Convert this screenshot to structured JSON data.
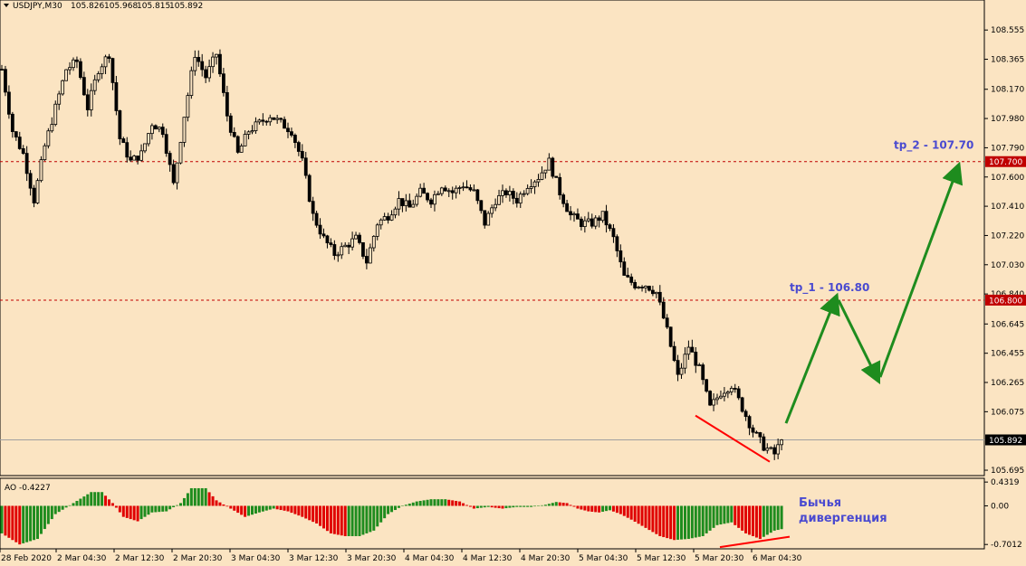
{
  "colors": {
    "background": "#fbe4c2",
    "candle": "#000000",
    "level_line": "#c00000",
    "price_badge": "#c00000",
    "current_line": "#a0a0a0",
    "current_badge": "#000000",
    "annotation_text": "#4a4ad0",
    "arrow": "#1e8c1e",
    "divergence_line": "#ff0000",
    "ao_up": "#1e8c1e",
    "ao_down": "#e00000"
  },
  "chart_data": [
    {
      "type": "candlestick",
      "header": {
        "symbol_label": "USDJPY,M30",
        "ohlc": [
          "105.826",
          "105.968",
          "105.815",
          "105.892"
        ]
      },
      "ylim": [
        105.66,
        108.75
      ],
      "y_ticks": [
        "108.555",
        "108.365",
        "108.170",
        "107.980",
        "107.790",
        "107.600",
        "107.410",
        "107.220",
        "107.030",
        "106.840",
        "106.645",
        "106.455",
        "106.265",
        "106.075",
        "105.695"
      ],
      "x_ticks": [
        "28 Feb 2020",
        "2 Mar 04:30",
        "2 Mar 12:30",
        "2 Mar 20:30",
        "3 Mar 04:30",
        "3 Mar 12:30",
        "3 Mar 20:30",
        "4 Mar 04:30",
        "4 Mar 12:30",
        "4 Mar 20:30",
        "5 Mar 04:30",
        "5 Mar 12:30",
        "5 Mar 20:30",
        "6 Mar 04:30"
      ],
      "grid": false,
      "price_anchors": [
        [
          0,
          108.3
        ],
        [
          3,
          107.9
        ],
        [
          6,
          107.75
        ],
        [
          9,
          107.45
        ],
        [
          12,
          107.8
        ],
        [
          15,
          108.05
        ],
        [
          18,
          108.3
        ],
        [
          21,
          108.35
        ],
        [
          24,
          108.05
        ],
        [
          27,
          108.3
        ],
        [
          30,
          108.4
        ],
        [
          33,
          107.85
        ],
        [
          36,
          107.7
        ],
        [
          39,
          107.75
        ],
        [
          42,
          107.95
        ],
        [
          45,
          107.9
        ],
        [
          48,
          107.55
        ],
        [
          51,
          108.0
        ],
        [
          54,
          108.4
        ],
        [
          57,
          108.25
        ],
        [
          60,
          108.4
        ],
        [
          63,
          108.0
        ],
        [
          66,
          107.75
        ],
        [
          69,
          107.9
        ],
        [
          72,
          107.95
        ],
        [
          75,
          108.0
        ],
        [
          78,
          107.95
        ],
        [
          81,
          107.9
        ],
        [
          84,
          107.7
        ],
        [
          87,
          107.35
        ],
        [
          90,
          107.2
        ],
        [
          93,
          107.1
        ],
        [
          96,
          107.15
        ],
        [
          99,
          107.2
        ],
        [
          102,
          107.05
        ],
        [
          105,
          107.3
        ],
        [
          108,
          107.35
        ],
        [
          111,
          107.45
        ],
        [
          114,
          107.4
        ],
        [
          117,
          107.5
        ],
        [
          120,
          107.45
        ],
        [
          123,
          107.55
        ],
        [
          126,
          107.5
        ],
        [
          129,
          107.55
        ],
        [
          132,
          107.5
        ],
        [
          135,
          107.3
        ],
        [
          138,
          107.45
        ],
        [
          141,
          107.5
        ],
        [
          144,
          107.45
        ],
        [
          147,
          107.55
        ],
        [
          150,
          107.6
        ],
        [
          153,
          107.7
        ],
        [
          156,
          107.5
        ],
        [
          159,
          107.35
        ],
        [
          162,
          107.3
        ],
        [
          165,
          107.3
        ],
        [
          168,
          107.35
        ],
        [
          171,
          107.2
        ],
        [
          174,
          106.95
        ],
        [
          177,
          106.9
        ],
        [
          180,
          106.9
        ],
        [
          183,
          106.85
        ],
        [
          186,
          106.6
        ],
        [
          189,
          106.3
        ],
        [
          192,
          106.5
        ],
        [
          195,
          106.35
        ],
        [
          198,
          106.1
        ],
        [
          201,
          106.2
        ],
        [
          204,
          106.25
        ],
        [
          207,
          106.1
        ],
        [
          210,
          105.95
        ],
        [
          213,
          105.85
        ],
        [
          216,
          105.8
        ],
        [
          218,
          105.89
        ]
      ],
      "levels": [
        {
          "label": "107.700",
          "value": 107.7
        },
        {
          "label": "106.800",
          "value": 106.8
        }
      ],
      "current_price": {
        "label": "105.892",
        "value": 105.892
      },
      "annotations": {
        "tp2": "tp_2 - 107.70",
        "tp1": "tp_1 - 106.80"
      },
      "forecast_path": [
        106.0,
        106.8,
        106.3,
        107.65
      ],
      "divergence_price": [
        106.05,
        105.75
      ]
    },
    {
      "type": "bar",
      "header": {
        "label": "AO -0.4227"
      },
      "ylim": [
        -0.78,
        0.5
      ],
      "y_ticks": [
        "0.4319",
        "0.00",
        "-0.7012"
      ],
      "zero_label": "0.00",
      "value_anchors": [
        [
          0,
          -0.5
        ],
        [
          5,
          -0.7
        ],
        [
          10,
          -0.6
        ],
        [
          15,
          -0.15
        ],
        [
          20,
          0.05
        ],
        [
          25,
          0.25
        ],
        [
          28,
          0.25
        ],
        [
          31,
          0.05
        ],
        [
          34,
          -0.2
        ],
        [
          38,
          -0.28
        ],
        [
          42,
          -0.12
        ],
        [
          46,
          -0.1
        ],
        [
          50,
          0.05
        ],
        [
          53,
          0.32
        ],
        [
          57,
          0.32
        ],
        [
          60,
          0.1
        ],
        [
          64,
          -0.05
        ],
        [
          68,
          -0.2
        ],
        [
          72,
          -0.12
        ],
        [
          76,
          -0.05
        ],
        [
          80,
          -0.1
        ],
        [
          84,
          -0.2
        ],
        [
          88,
          -0.32
        ],
        [
          92,
          -0.5
        ],
        [
          96,
          -0.55
        ],
        [
          100,
          -0.55
        ],
        [
          104,
          -0.45
        ],
        [
          108,
          -0.15
        ],
        [
          112,
          0.0
        ],
        [
          116,
          0.08
        ],
        [
          120,
          0.12
        ],
        [
          124,
          0.12
        ],
        [
          128,
          0.08
        ],
        [
          132,
          -0.05
        ],
        [
          136,
          -0.02
        ],
        [
          140,
          -0.05
        ],
        [
          144,
          -0.02
        ],
        [
          148,
          -0.02
        ],
        [
          152,
          0.02
        ],
        [
          155,
          0.07
        ],
        [
          158,
          0.05
        ],
        [
          161,
          -0.05
        ],
        [
          164,
          -0.1
        ],
        [
          167,
          -0.12
        ],
        [
          170,
          -0.08
        ],
        [
          173,
          -0.15
        ],
        [
          176,
          -0.25
        ],
        [
          180,
          -0.4
        ],
        [
          184,
          -0.55
        ],
        [
          188,
          -0.62
        ],
        [
          192,
          -0.6
        ],
        [
          196,
          -0.55
        ],
        [
          200,
          -0.35
        ],
        [
          204,
          -0.3
        ],
        [
          208,
          -0.5
        ],
        [
          212,
          -0.6
        ],
        [
          216,
          -0.45
        ],
        [
          218,
          -0.4227
        ]
      ],
      "annotation": [
        "Бычья",
        "дивергенция"
      ],
      "divergence_ao": [
        -0.75,
        -0.56
      ]
    }
  ]
}
